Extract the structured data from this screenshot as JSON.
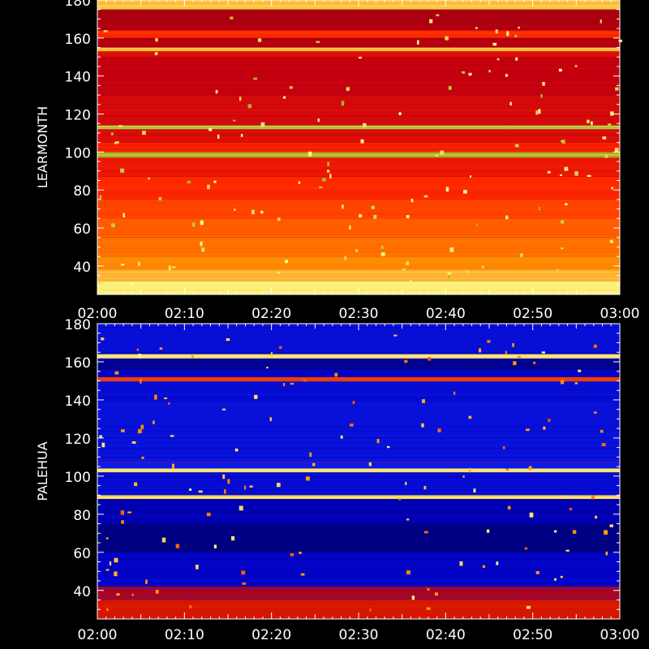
{
  "chart_data": [
    {
      "type": "heatmap",
      "ylabel": "LEARMONTH",
      "x_ticks": [
        "02:00",
        "02:10",
        "02:20",
        "02:30",
        "02:40",
        "02:50",
        "03:00"
      ],
      "y_ticks": [
        40,
        60,
        80,
        100,
        120,
        140,
        160,
        180
      ],
      "ylim": [
        25,
        180
      ],
      "xlim": [
        "02:00",
        "03:00"
      ],
      "colormap": "red-temperature",
      "palette": [
        "#8a0010",
        "#c40010",
        "#ff2200",
        "#ff5500",
        "#ff8800",
        "#ffc040",
        "#ffff90",
        "#a0b020"
      ],
      "rows": [
        {
          "y0": 25,
          "y1": 32,
          "level": 0.82
        },
        {
          "y0": 32,
          "y1": 38,
          "level": 0.68
        },
        {
          "y0": 38,
          "y1": 45,
          "level": 0.58
        },
        {
          "y0": 45,
          "y1": 55,
          "level": 0.5
        },
        {
          "y0": 55,
          "y1": 65,
          "level": 0.45
        },
        {
          "y0": 65,
          "y1": 75,
          "level": 0.38
        },
        {
          "y0": 75,
          "y1": 87,
          "level": 0.3
        },
        {
          "y0": 87,
          "y1": 97,
          "level": 0.24
        },
        {
          "y0": 97,
          "y1": 100,
          "level": 0.9,
          "color": "#a8b020"
        },
        {
          "y0": 100,
          "y1": 105,
          "level": 0.28
        },
        {
          "y0": 105,
          "y1": 112,
          "level": 0.2
        },
        {
          "y0": 112,
          "y1": 114,
          "level": 0.95
        },
        {
          "y0": 114,
          "y1": 130,
          "level": 0.18
        },
        {
          "y0": 130,
          "y1": 150,
          "level": 0.14
        },
        {
          "y0": 150,
          "y1": 153,
          "level": 0.2
        },
        {
          "y0": 153,
          "y1": 155,
          "level": 0.7
        },
        {
          "y0": 155,
          "y1": 160,
          "level": 0.1
        },
        {
          "y0": 160,
          "y1": 164,
          "level": 0.3
        },
        {
          "y0": 164,
          "y1": 175,
          "level": 0.08
        },
        {
          "y0": 175,
          "y1": 180,
          "level": 0.72
        }
      ]
    },
    {
      "type": "heatmap",
      "ylabel": "PALEHUA",
      "x_ticks": [
        "02:00",
        "02:10",
        "02:20",
        "02:30",
        "02:40",
        "02:50",
        "03:00"
      ],
      "y_ticks": [
        40,
        60,
        80,
        100,
        120,
        140,
        160,
        180
      ],
      "ylim": [
        25,
        180
      ],
      "xlim": [
        "02:00",
        "03:00"
      ],
      "colormap": "blue-rainbow",
      "palette": [
        "#000030",
        "#000070",
        "#0000c0",
        "#1020f0",
        "#c00000",
        "#ff4000",
        "#ffa000",
        "#ffffa0"
      ],
      "rows": [
        {
          "y0": 25,
          "y1": 35,
          "level": 0.62
        },
        {
          "y0": 35,
          "y1": 42,
          "level": 0.55
        },
        {
          "y0": 42,
          "y1": 60,
          "level": 0.3
        },
        {
          "y0": 60,
          "y1": 75,
          "level": 0.18
        },
        {
          "y0": 75,
          "y1": 88,
          "level": 0.26
        },
        {
          "y0": 88,
          "y1": 90,
          "level": 0.96
        },
        {
          "y0": 90,
          "y1": 102,
          "level": 0.34
        },
        {
          "y0": 102,
          "y1": 104,
          "level": 0.96
        },
        {
          "y0": 104,
          "y1": 108,
          "level": 0.4
        },
        {
          "y0": 108,
          "y1": 140,
          "level": 0.36
        },
        {
          "y0": 140,
          "y1": 150,
          "level": 0.34
        },
        {
          "y0": 150,
          "y1": 152,
          "level": 0.7
        },
        {
          "y0": 152,
          "y1": 156,
          "level": 0.3
        },
        {
          "y0": 156,
          "y1": 162,
          "level": 0.2
        },
        {
          "y0": 162,
          "y1": 164,
          "level": 0.96
        },
        {
          "y0": 164,
          "y1": 180,
          "level": 0.35
        }
      ]
    }
  ]
}
